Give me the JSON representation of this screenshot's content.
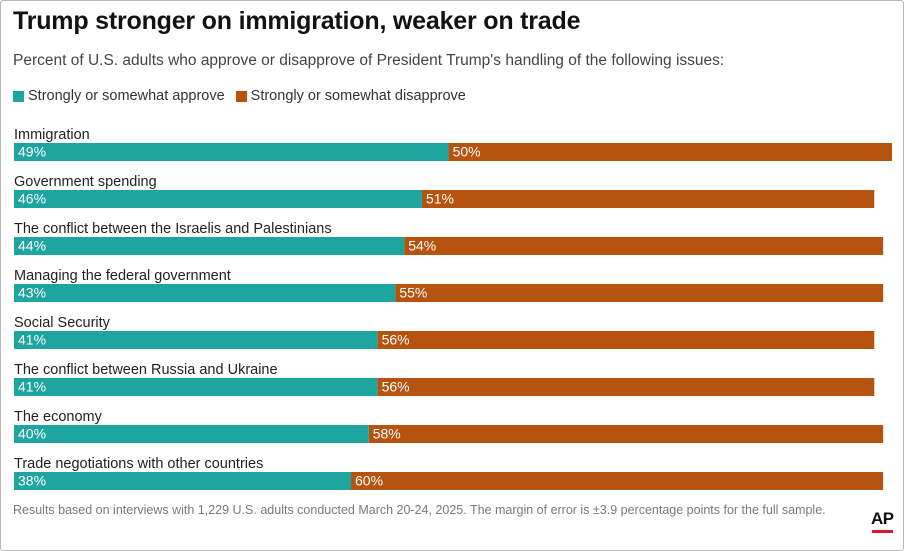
{
  "title": "Trump stronger on immigration, weaker on trade",
  "subtitle": "Percent of U.S. adults who approve or disapprove of President Trump's handling of the following issues:",
  "legend": [
    {
      "label": "Strongly or somewhat approve",
      "color": "#1fa59f"
    },
    {
      "label": "Strongly or somewhat disapprove",
      "color": "#b5530f"
    }
  ],
  "footer": "Results based on interviews with 1,229 U.S. adults conducted March 20-24, 2025. The margin of error is ±3.9 percentage points for the full sample.",
  "logo": "AP",
  "chart_data": {
    "type": "bar",
    "orientation": "horizontal",
    "stacked": true,
    "title": "Trump stronger on immigration, weaker on trade",
    "subtitle": "Percent of U.S. adults who approve or disapprove of President Trump's handling of the following issues:",
    "categories": [
      "Immigration",
      "Government spending",
      "The conflict between the Israelis and Palestinians",
      "Managing the federal government",
      "Social Security",
      "The conflict between Russia and Ukraine",
      "The economy",
      "Trade negotiations with other countries"
    ],
    "series": [
      {
        "name": "Strongly or somewhat approve",
        "color": "#1fa59f",
        "values": [
          49,
          46,
          44,
          43,
          41,
          41,
          40,
          38
        ]
      },
      {
        "name": "Strongly or somewhat disapprove",
        "color": "#b5530f",
        "values": [
          50,
          51,
          54,
          55,
          56,
          56,
          58,
          60
        ]
      }
    ],
    "value_suffix": "%",
    "xlim": [
      0,
      99
    ],
    "grid": false,
    "legend_position": "top-left"
  }
}
